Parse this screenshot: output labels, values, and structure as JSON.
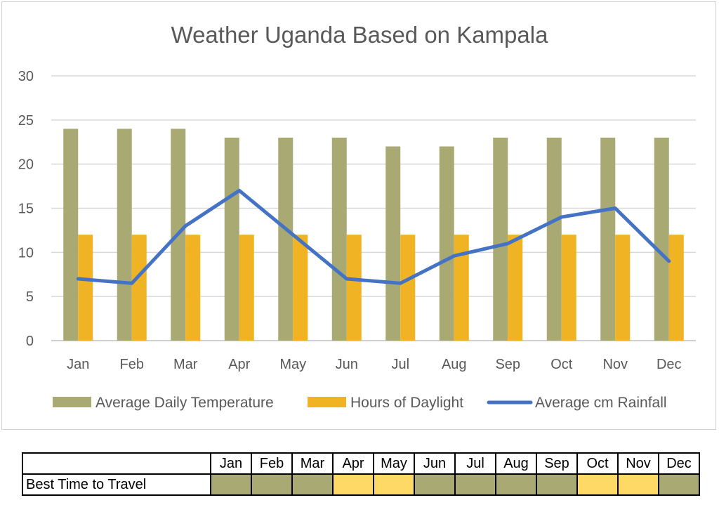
{
  "chart_data": {
    "type": "bar",
    "title": "Weather Uganda Based on Kampala",
    "categories": [
      "Jan",
      "Feb",
      "Mar",
      "Apr",
      "May",
      "Jun",
      "Jul",
      "Aug",
      "Sep",
      "Oct",
      "Nov",
      "Dec"
    ],
    "ylim": [
      0,
      30
    ],
    "yticks": [
      0,
      5,
      10,
      15,
      20,
      25,
      30
    ],
    "grid": true,
    "legend_position": "bottom",
    "xlabel": "",
    "ylabel": "",
    "series": [
      {
        "name": "Average Daily Temperature",
        "type": "bar",
        "color": "#a9a974",
        "values": [
          24,
          24,
          24,
          23,
          23,
          23,
          22,
          22,
          23,
          23,
          23,
          23
        ]
      },
      {
        "name": "Hours of Daylight",
        "type": "bar",
        "color": "#f0b323",
        "values": [
          12,
          12,
          12,
          12,
          12,
          12,
          12,
          12,
          12,
          12,
          12,
          12
        ]
      },
      {
        "name": "Average cm Rainfall",
        "type": "line",
        "color": "#4472c4",
        "values": [
          7,
          6.5,
          13,
          17,
          12,
          7,
          6.5,
          9.6,
          11,
          14,
          15,
          9
        ]
      }
    ]
  },
  "travel_table": {
    "months": [
      "Jan",
      "Feb",
      "Mar",
      "Apr",
      "May",
      "Jun",
      "Jul",
      "Aug",
      "Sep",
      "Oct",
      "Nov",
      "Dec"
    ],
    "row_label": "Best Time to Travel",
    "colors": [
      "#a9a974",
      "#a9a974",
      "#a9a974",
      "#ffd966",
      "#ffd966",
      "#a9a974",
      "#a9a974",
      "#a9a974",
      "#a9a974",
      "#ffd966",
      "#ffd966",
      "#a9a974"
    ]
  }
}
